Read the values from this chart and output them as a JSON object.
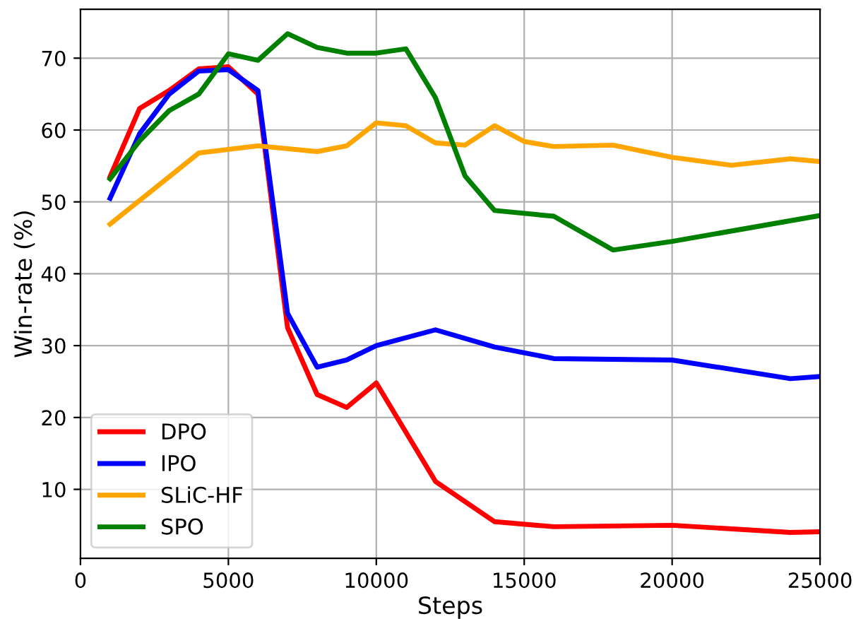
{
  "chart_data": {
    "type": "line",
    "xlabel": "Steps",
    "ylabel": "Win-rate (%)",
    "xlim": [
      0,
      25000
    ],
    "xticks": [
      0,
      5000,
      10000,
      15000,
      20000,
      25000
    ],
    "ylim": [
      0.4,
      76.8
    ],
    "yticks": [
      10,
      20,
      30,
      40,
      50,
      60,
      70
    ],
    "grid": true,
    "legend": "bottom left",
    "series": [
      {
        "name": "DPO",
        "color": "#ff0000",
        "x": [
          1000,
          2000,
          3000,
          4000,
          5000,
          6000,
          7000,
          8000,
          9000,
          10000,
          12000,
          14000,
          16000,
          20000,
          24000,
          25000
        ],
        "values": [
          53.5,
          63,
          65.5,
          68.5,
          68.8,
          65,
          32.5,
          23.2,
          21.4,
          24.8,
          11.1,
          5.5,
          4.8,
          5.0,
          4.0,
          4.1
        ]
      },
      {
        "name": "IPO",
        "color": "#0000ff",
        "x": [
          1000,
          2000,
          3000,
          4000,
          5000,
          6000,
          7000,
          8000,
          9000,
          10000,
          12000,
          14000,
          16000,
          20000,
          24000,
          25000
        ],
        "values": [
          50.5,
          59.5,
          65,
          68.2,
          68.4,
          65.5,
          34.5,
          27,
          28,
          30,
          32.2,
          29.8,
          28.2,
          28,
          25.4,
          25.7
        ]
      },
      {
        "name": "SLiC-HF",
        "color": "#ffa500",
        "x": [
          1000,
          4000,
          6000,
          8000,
          9000,
          10000,
          11000,
          12000,
          13000,
          14000,
          15000,
          16000,
          18000,
          20000,
          22000,
          24000,
          25000
        ],
        "values": [
          46.9,
          56.8,
          57.8,
          57,
          57.8,
          61,
          60.6,
          58.2,
          57.9,
          60.6,
          58.4,
          57.7,
          57.9,
          56.2,
          55.1,
          56,
          55.6
        ]
      },
      {
        "name": "SPO",
        "color": "#008000",
        "x": [
          1000,
          2000,
          3000,
          4000,
          5000,
          6000,
          7000,
          8000,
          9000,
          10000,
          11000,
          12000,
          13000,
          14000,
          16000,
          18000,
          20000,
          25000
        ],
        "values": [
          53.2,
          58.5,
          62.7,
          65,
          70.6,
          69.7,
          73.4,
          71.5,
          70.7,
          70.7,
          71.3,
          64.5,
          53.6,
          48.8,
          48,
          43.3,
          44.5,
          48.1
        ]
      }
    ]
  }
}
